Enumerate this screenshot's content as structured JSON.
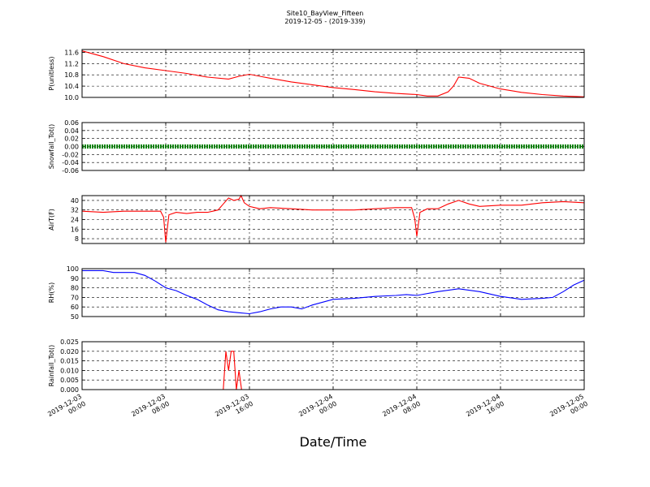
{
  "chart_data": {
    "type": "line",
    "title": "Site10_BayView_Fifteen",
    "subtitle": "2019-12-05 - (2019-339)",
    "xlabel": "Date/Time",
    "x_ticks": [
      [
        "2019-12-03",
        "00:00"
      ],
      [
        "2019-12-03",
        "08:00"
      ],
      [
        "2019-12-03",
        "16:00"
      ],
      [
        "2019-12-04",
        "00:00"
      ],
      [
        "2019-12-04",
        "08:00"
      ],
      [
        "2019-12-04",
        "16:00"
      ],
      [
        "2019-12-05",
        "00:00"
      ]
    ],
    "x_range_hours": [
      0,
      48
    ],
    "grid": true,
    "panels": [
      {
        "ylabel": "P(unitless)",
        "ylim": [
          10.0,
          11.7
        ],
        "yticks": [
          "10.0",
          "10.4",
          "10.8",
          "11.2",
          "11.6"
        ],
        "ytick_values": [
          10.0,
          10.4,
          10.8,
          11.2,
          11.6
        ],
        "color": "#ff0000",
        "series": [
          {
            "x": [
              0,
              2,
              4,
              6,
              8,
              10,
              12,
              14,
              15,
              16,
              17,
              18,
              20,
              22,
              24,
              26,
              28,
              30,
              32,
              33,
              34,
              35,
              35.5,
              36,
              37,
              38,
              40,
              42,
              44,
              46,
              48
            ],
            "y": [
              11.65,
              11.45,
              11.2,
              11.05,
              10.95,
              10.85,
              10.72,
              10.65,
              10.75,
              10.82,
              10.75,
              10.68,
              10.55,
              10.45,
              10.35,
              10.28,
              10.2,
              10.14,
              10.1,
              10.05,
              10.05,
              10.2,
              10.4,
              10.72,
              10.68,
              10.5,
              10.3,
              10.18,
              10.1,
              10.05,
              10.02
            ]
          }
        ]
      },
      {
        "ylabel": "Snowfall_Tot()",
        "ylim": [
          -0.06,
          0.06
        ],
        "yticks": [
          "-0.06",
          "-0.04",
          "-0.02",
          "0.00",
          "0.02",
          "0.04",
          "0.06"
        ],
        "ytick_values": [
          -0.06,
          -0.04,
          -0.02,
          0.0,
          0.02,
          0.04,
          0.06
        ],
        "color": "#008000",
        "marker": "points",
        "series": [
          {
            "x": [
              0,
              48
            ],
            "y": [
              0.0,
              0.0
            ]
          }
        ]
      },
      {
        "ylabel": "AirT(F)",
        "ylim": [
          4,
          44
        ],
        "yticks": [
          "8",
          "16",
          "24",
          "32",
          "40"
        ],
        "ytick_values": [
          8,
          16,
          24,
          32,
          40
        ],
        "color": "#ff0000",
        "series": [
          {
            "x": [
              0,
              2,
              4,
              6,
              7.5,
              7.8,
              8.0,
              8.3,
              9,
              10,
              11,
              12,
              12.5,
              13,
              13.5,
              14,
              14.5,
              15,
              15.2,
              15.5,
              16,
              16.5,
              17,
              18,
              20,
              22,
              24,
              26,
              28,
              30,
              31.5,
              31.8,
              32.0,
              32.3,
              33,
              34,
              35,
              36,
              37,
              38,
              40,
              42,
              44,
              46,
              48
            ],
            "y": [
              31,
              30,
              31,
              31,
              31,
              26,
              5,
              28,
              30,
              29,
              30,
              30,
              31,
              32,
              37,
              42,
              40,
              41,
              44,
              38,
              35,
              34,
              33,
              34,
              33,
              32,
              32,
              32,
              33,
              34,
              34,
              25,
              10,
              30,
              33,
              33,
              37,
              40,
              37,
              35,
              36,
              36,
              38,
              39,
              38
            ]
          }
        ]
      },
      {
        "ylabel": "RH(%)",
        "ylim": [
          50,
          100
        ],
        "yticks": [
          "50",
          "60",
          "70",
          "80",
          "90",
          "100"
        ],
        "ytick_values": [
          50,
          60,
          70,
          80,
          90,
          100
        ],
        "color": "#0000ff",
        "series": [
          {
            "x": [
              0,
              2,
              3,
              5,
              6,
              7,
              8,
              9,
              10,
              11,
              12,
              13,
              14,
              15,
              16,
              17,
              18,
              19,
              20,
              21,
              22,
              24,
              26,
              28,
              30,
              31,
              32,
              34,
              36,
              38,
              40,
              42,
              44,
              45,
              46,
              47,
              48
            ],
            "y": [
              98,
              98,
              96,
              96,
              93,
              87,
              80,
              77,
              72,
              68,
              62,
              57,
              55,
              54,
              53,
              55,
              58,
              60,
              60,
              58,
              62,
              68,
              69,
              71,
              72,
              73,
              72,
              76,
              79,
              76,
              71,
              68,
              69,
              70,
              76,
              83,
              88
            ]
          }
        ]
      },
      {
        "ylabel": "Rainfall_Tot()",
        "ylim": [
          0.0,
          0.025
        ],
        "yticks": [
          "0.000",
          "0.005",
          "0.010",
          "0.015",
          "0.020",
          "0.025"
        ],
        "ytick_values": [
          0.0,
          0.005,
          0.01,
          0.015,
          0.02,
          0.025
        ],
        "color": "#ff0000",
        "series": [
          {
            "x": [
              0,
              13.5,
              13.75,
              14.0,
              14.25,
              14.5,
              14.75,
              15.0,
              15.25,
              15.5,
              48
            ],
            "y": [
              0.0,
              0.0,
              0.02,
              0.01,
              0.02,
              0.02,
              0.0,
              0.01,
              0.0,
              0.0,
              0.0
            ]
          }
        ]
      }
    ]
  }
}
